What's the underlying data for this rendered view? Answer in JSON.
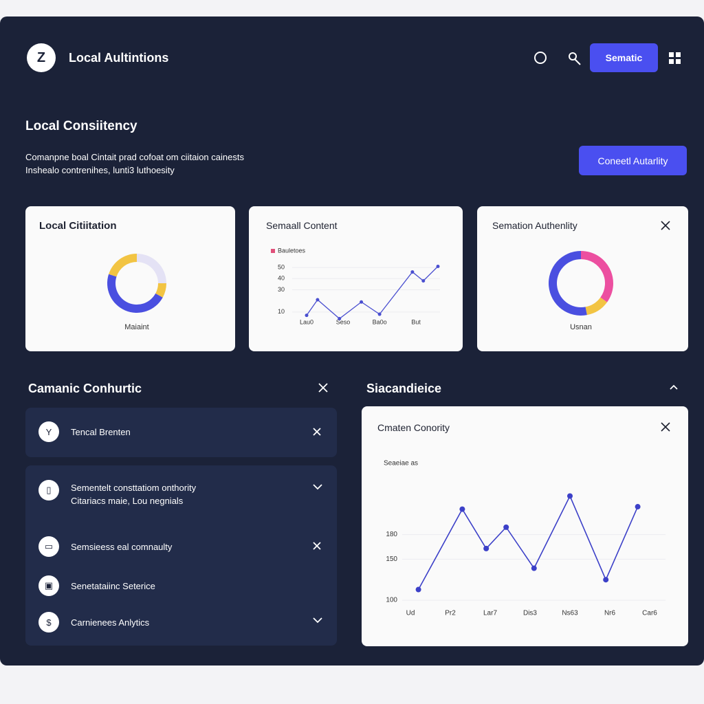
{
  "header": {
    "title": "Local Aultintions",
    "button": "Sematic"
  },
  "hero": {
    "title": "Local Consiitency",
    "lines": [
      "Comanpne boal  Cintait prad cofoat om ciitaion cainests",
      "Inshealo contrenihes,  lunti3 luthoesity"
    ],
    "button": "Coneetl Autarlity"
  },
  "cards": [
    {
      "title": "Local Citiitation",
      "chart": {
        "type": "pie",
        "donut": true,
        "caption": "Maiaint",
        "values": [
          25,
          8,
          47,
          20
        ],
        "colors": [
          "#e4e2f5",
          "#f2c443",
          "#4a4fe0",
          "#f2c443"
        ]
      }
    },
    {
      "title": "Semaall Content",
      "chart": {
        "type": "line",
        "series": [
          {
            "name": "Bauletoes",
            "color": "#4a4fd0",
            "legend_color": "#e0507a",
            "x": [
              0,
              0.3,
              0.9,
              1.5,
              2.0,
              2.9,
              3.2,
              3.6
            ],
            "values": [
              7,
              21,
              4,
              19,
              8,
              46,
              38,
              51
            ]
          }
        ],
        "xlim": [
          0,
          3.6
        ],
        "xticks": [
          {
            "value": 0,
            "label": "Lau0"
          },
          {
            "value": 1,
            "label": "Seso"
          },
          {
            "value": 2,
            "label": "Ba0o"
          },
          {
            "value": 3,
            "label": "But"
          }
        ],
        "ylim": [
          0,
          55
        ],
        "yticks": [
          10,
          30,
          40,
          50
        ],
        "grid": true
      }
    },
    {
      "title": "Semation Authenlity",
      "chart": {
        "type": "pie",
        "donut": true,
        "caption": "Usnan",
        "values": [
          35,
          12,
          53
        ],
        "colors": [
          "#ec4fa0",
          "#f2c443",
          "#4a4fe0"
        ]
      }
    }
  ],
  "left": {
    "title": "Camanic Conhurtic",
    "items": [
      {
        "title": "Tencal  Brenten"
      },
      {
        "title": "Sementelt consttatiom onthority",
        "subtitle": "Citariacs maie,  Lou negnials"
      },
      {
        "title": "Semsieess eal comnaulty"
      },
      {
        "title": "Senetataiinc Seterice"
      },
      {
        "title": "Carnienees Anlytics"
      }
    ]
  },
  "right": {
    "title": "Siacandieice",
    "card": {
      "title": "Cmaten Conority",
      "chart": {
        "type": "line",
        "series": [
          {
            "name": "Seaeiae as",
            "color": "#3c40c8",
            "x": [
              0.2,
              1.3,
              1.9,
              2.4,
              3.1,
              4.0,
              4.9,
              5.7
            ],
            "values": [
              113,
              211,
              163,
              189,
              139,
              227,
              125,
              214
            ]
          }
        ],
        "xlim": [
          0,
          6
        ],
        "xticks": [
          {
            "value": 0,
            "label": "Ud"
          },
          {
            "value": 1,
            "label": "Pr2"
          },
          {
            "value": 2,
            "label": "Lar7"
          },
          {
            "value": 3,
            "label": "Dis3"
          },
          {
            "value": 4,
            "label": "Ns63"
          },
          {
            "value": 5,
            "label": "Nr6"
          },
          {
            "value": 6,
            "label": "Car6"
          }
        ],
        "ylim": [
          90,
          240
        ],
        "yticks": [
          100,
          150,
          180
        ],
        "grid": true
      }
    }
  }
}
